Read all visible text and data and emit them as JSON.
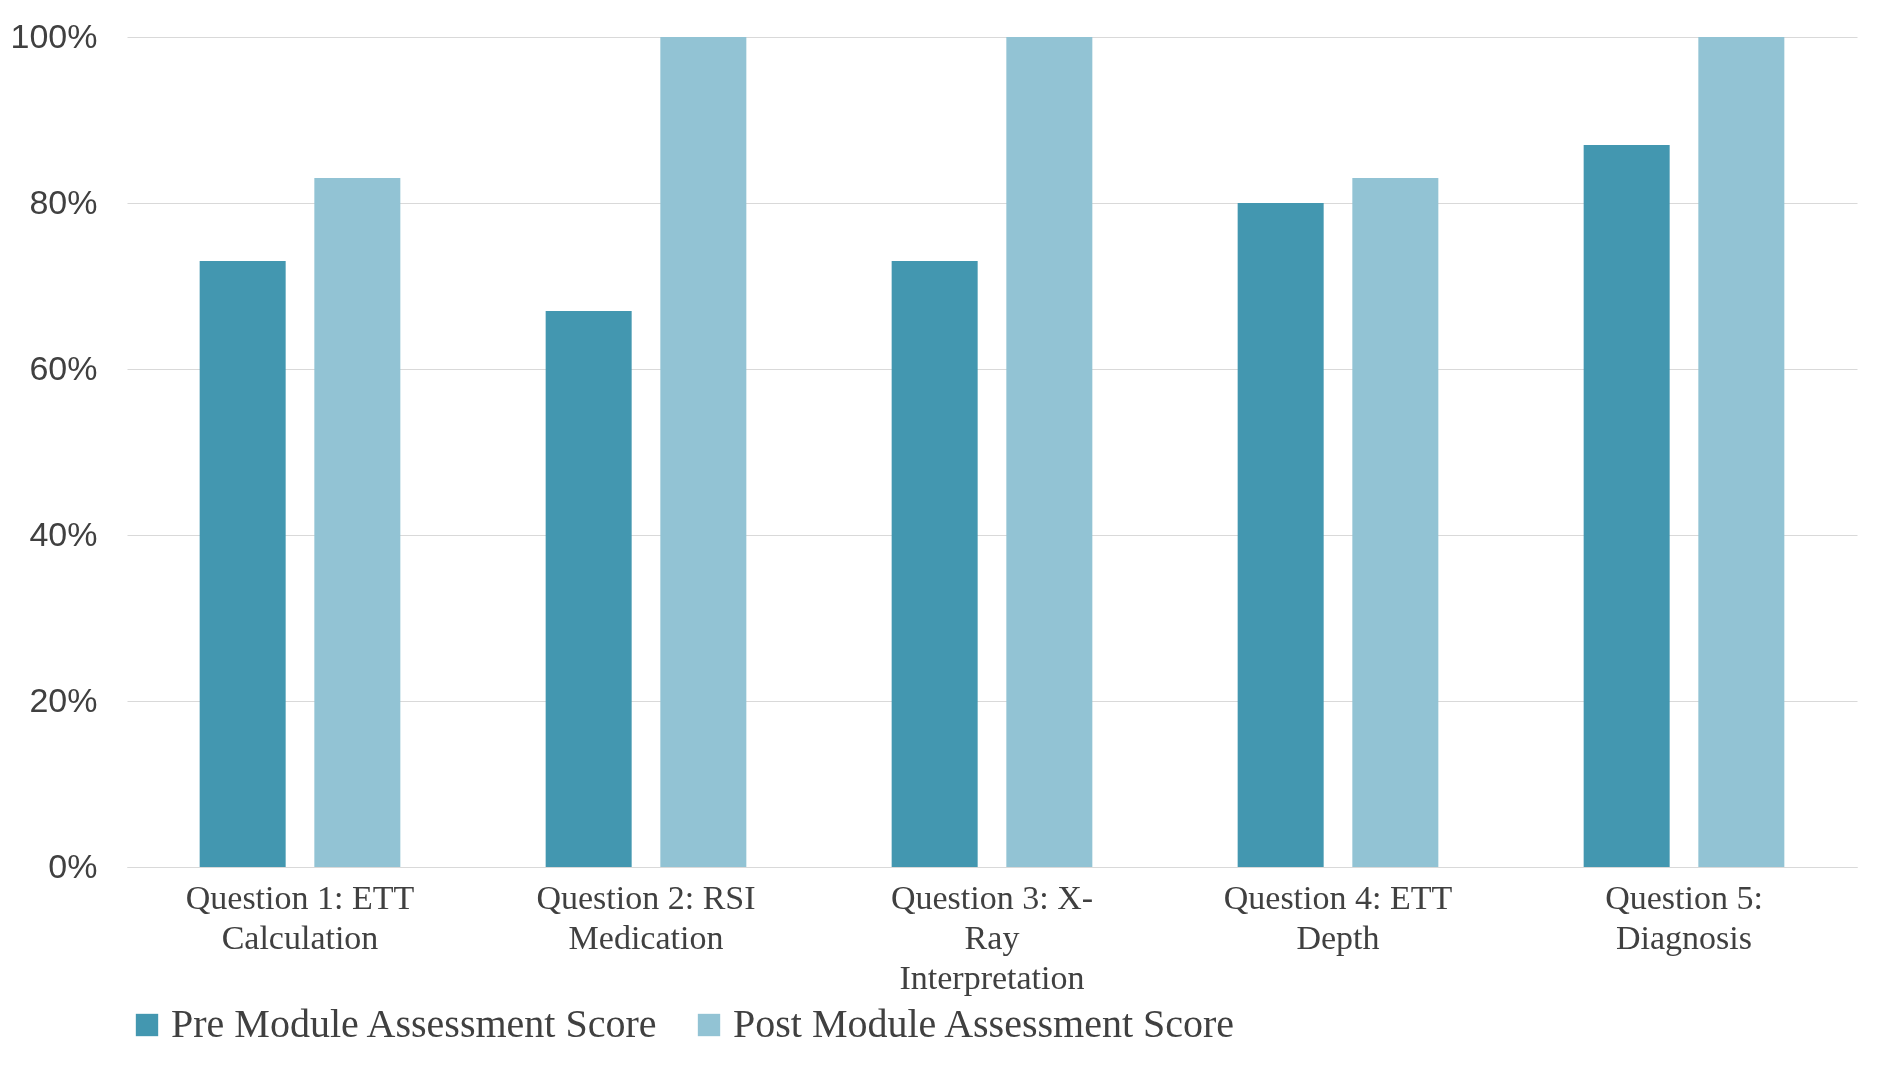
{
  "chart_data": {
    "type": "bar",
    "categories": [
      "Question 1: ETT Calculation",
      "Question 2: RSI Medication",
      "Question 3: X-Ray Interpretation",
      "Question 4: ETT Depth",
      "Question 5: Diagnosis"
    ],
    "series": [
      {
        "name": "Pre Module Assessment Score",
        "color": "#4397b0",
        "values": [
          73,
          67,
          73,
          80,
          87
        ]
      },
      {
        "name": "Post Module Assessment Score",
        "color": "#92c3d4",
        "values": [
          83,
          100,
          100,
          83,
          100
        ]
      }
    ],
    "ylim": [
      0,
      100
    ],
    "yticks": [
      {
        "value": 0,
        "label": "0%"
      },
      {
        "value": 20,
        "label": "20%"
      },
      {
        "value": 40,
        "label": "40%"
      },
      {
        "value": 60,
        "label": "60%"
      },
      {
        "value": 80,
        "label": "80%"
      },
      {
        "value": 100,
        "label": "100%"
      }
    ],
    "grid": "y",
    "legend": "bottom"
  }
}
